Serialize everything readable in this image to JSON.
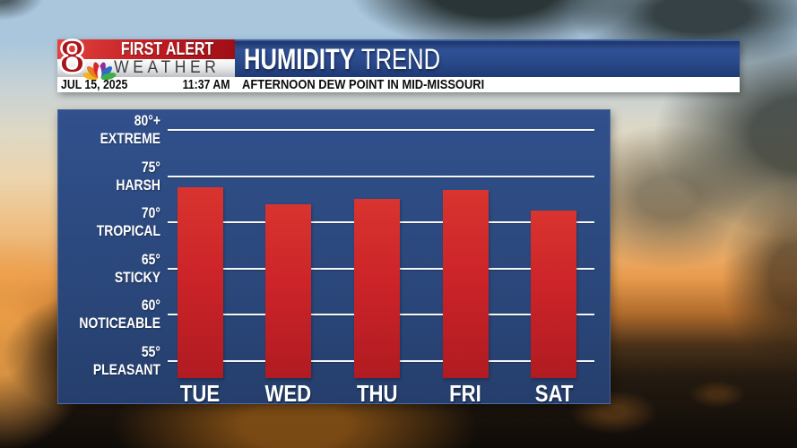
{
  "header": {
    "logo": {
      "station_number": "8",
      "brand_top": "FIRST ALERT",
      "brand_bottom": "WEATHER",
      "peacock_icon": "nbc-peacock"
    },
    "date": "JUL 15, 2025",
    "time": "11:37 AM",
    "title_primary": "HUMIDITY",
    "title_secondary": "TREND",
    "subtitle": "AFTERNOON DEW POINT IN MID-MISSOURI"
  },
  "colors": {
    "banner_blue_top": "#2f5096",
    "banner_blue_bottom": "#1e3a74",
    "panel_blue": "#2a4679",
    "bar_red_top": "#d9342f",
    "bar_red_bottom": "#b01b21",
    "gridline_white": "#f5f7fa",
    "logo_red": "#c01b22",
    "peacock": [
      "#f0b41e",
      "#e87c1e",
      "#d6252b",
      "#8c2f96",
      "#2a6cc8",
      "#3fae49"
    ]
  },
  "chart_data": {
    "type": "bar",
    "title": "HUMIDITY TREND",
    "subtitle": "AFTERNOON DEW POINT IN MID-MISSOURI",
    "categories": [
      "TUE",
      "WED",
      "THU",
      "FRI",
      "SAT"
    ],
    "values": [
      73.8,
      72.0,
      72.5,
      73.5,
      71.3
    ],
    "axis_bands": [
      {
        "tick": "80°+",
        "label": "EXTREME",
        "value": 80
      },
      {
        "tick": "75°",
        "label": "HARSH",
        "value": 75
      },
      {
        "tick": "70°",
        "label": "TROPICAL",
        "value": 70
      },
      {
        "tick": "65°",
        "label": "STICKY",
        "value": 65
      },
      {
        "tick": "60°",
        "label": "NOTICEABLE",
        "value": 60
      },
      {
        "tick": "55°",
        "label": "PLEASANT",
        "value": 55
      }
    ],
    "ylim": [
      53,
      82
    ],
    "grid": true,
    "legend": false,
    "bar_color": "#cc2429"
  }
}
